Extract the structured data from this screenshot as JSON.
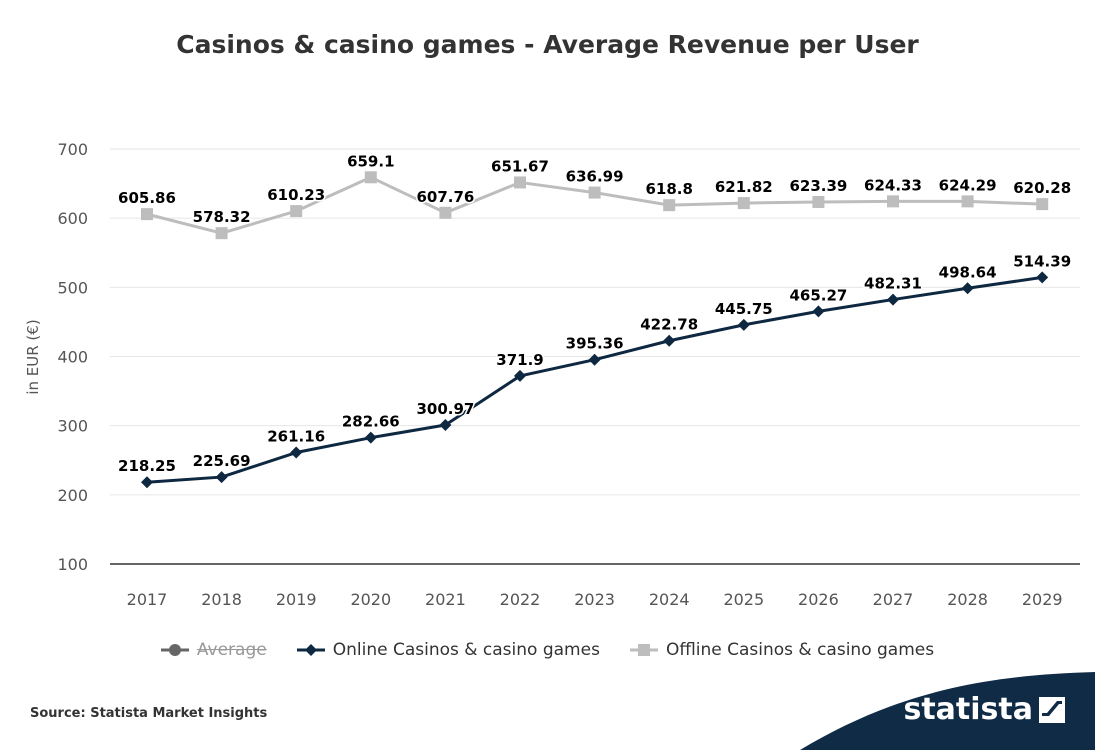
{
  "title": "Casinos & casino games - Average Revenue per User",
  "source": "Source: Statista Market Insights",
  "brand": "statista",
  "colors": {
    "online": "#0e2841",
    "offline": "#bdbdbd",
    "average": "#666666",
    "grid": "#e6e6e6",
    "axis": "#333333",
    "brand_dark": "#0f2b46",
    "brand_blue": "#1f5fa8"
  },
  "legend": [
    {
      "label": "Average",
      "symbol": "circle",
      "hidden": true
    },
    {
      "label": "Online Casinos & casino games",
      "symbol": "diamond",
      "hidden": false
    },
    {
      "label": "Offline Casinos & casino games",
      "symbol": "square",
      "hidden": false
    }
  ],
  "chart_data": {
    "type": "line",
    "title": "Casinos & casino games - Average Revenue per User",
    "xlabel": "",
    "ylabel": "in EUR (€)",
    "ylim": [
      100,
      700
    ],
    "yticks": [
      100,
      200,
      300,
      400,
      500,
      600,
      700
    ],
    "grid": true,
    "legend_position": "bottom",
    "x": [
      "2017",
      "2018",
      "2019",
      "2020",
      "2021",
      "2022",
      "2023",
      "2024",
      "2025",
      "2026",
      "2027",
      "2028",
      "2029"
    ],
    "series": [
      {
        "name": "Online Casinos & casino games",
        "values": [
          218.25,
          225.69,
          261.16,
          282.66,
          300.97,
          371.9,
          395.36,
          422.78,
          445.75,
          465.27,
          482.31,
          498.64,
          514.39
        ],
        "labels": [
          "218.25",
          "225.69",
          "261.16",
          "282.66",
          "300.97",
          "371.9",
          "395.36",
          "422.78",
          "445.75",
          "465.27",
          "482.31",
          "498.64",
          "514.39"
        ]
      },
      {
        "name": "Offline Casinos & casino games",
        "values": [
          605.86,
          578.32,
          610.23,
          659.1,
          607.76,
          651.67,
          636.99,
          618.8,
          621.82,
          623.39,
          624.33,
          624.29,
          620.28
        ],
        "labels": [
          "605.86",
          "578.32",
          "610.23",
          "659.1",
          "607.76",
          "651.67",
          "636.99",
          "618.8",
          "621.82",
          "623.39",
          "624.33",
          "624.29",
          "620.28"
        ]
      }
    ]
  }
}
